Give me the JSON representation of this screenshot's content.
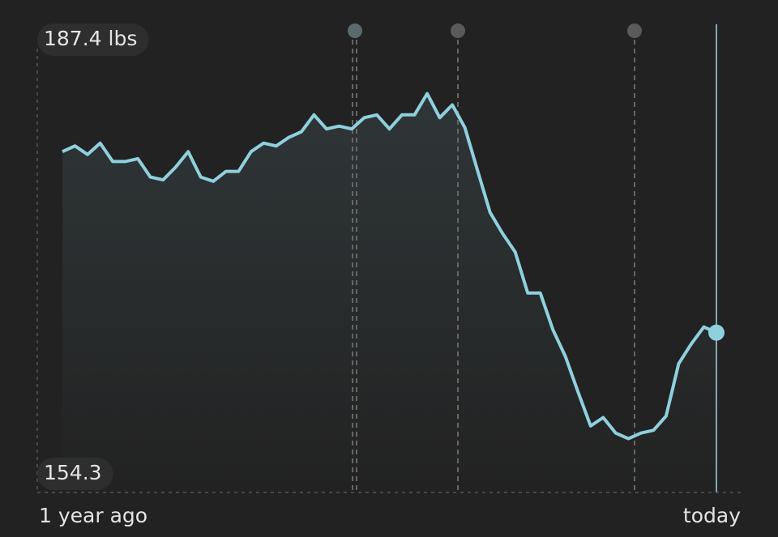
{
  "chart_data": {
    "type": "line",
    "values": [
      178.4,
      178.8,
      178.2,
      179.0,
      177.7,
      177.7,
      177.9,
      176.6,
      176.4,
      177.3,
      178.4,
      176.6,
      176.3,
      177.0,
      177.0,
      178.4,
      179.0,
      178.8,
      179.4,
      179.8,
      181.0,
      180.0,
      180.2,
      180.0,
      180.8,
      181.0,
      180.0,
      181.0,
      181.0,
      182.5,
      180.8,
      181.7,
      180.1,
      177.1,
      174.1,
      172.6,
      171.3,
      168.4,
      168.4,
      165.8,
      163.9,
      161.4,
      159.0,
      159.6,
      158.5,
      158.1,
      158.5,
      158.7,
      159.7,
      163.4,
      164.8,
      166.0,
      165.6
    ],
    "color": "#8fd0de",
    "ylim": [
      154.3,
      187.4
    ],
    "yticks": [
      {
        "value": 187.4,
        "label": "187.4 lbs"
      },
      154.3
    ],
    "x_labels": [
      "1 year ago",
      "today"
    ]
  }
}
